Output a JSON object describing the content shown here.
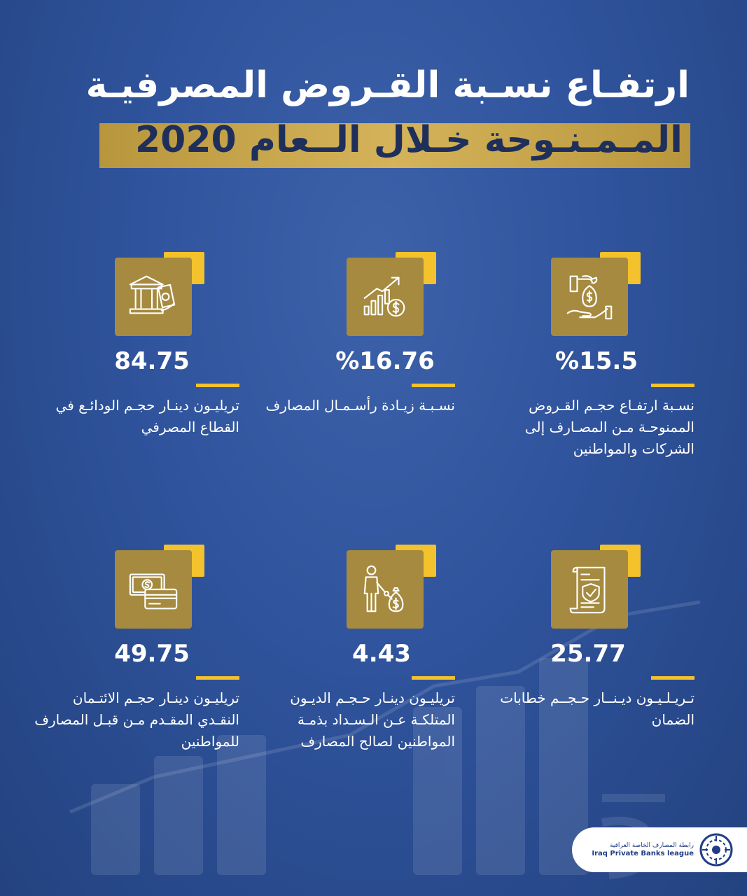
{
  "header": {
    "title_line1": "ارتفـاع نسـبة القـروض المصرفيـة",
    "title_line2": "المـمـنـوحة خـلال الــعام 2020"
  },
  "stats": [
    {
      "value": "%15.5",
      "description": "نسـبة ارتفـاع حجـم القـروض الممنوحـة مـن المصـارف إلى الشركات والمواطنين",
      "icon": "money-bag-hand-icon"
    },
    {
      "value": "%16.76",
      "description": "نسـبـة زيـادة رأسـمـال المصارف",
      "icon": "growth-chart-dollar-icon"
    },
    {
      "value": "84.75",
      "description": "تريليـون دينـار حجـم الودائـع في القطاع المصرفي",
      "icon": "bank-deposit-icon"
    },
    {
      "value": "25.77",
      "description": "تـريـلـيـون ديـنــار حـجــم خطابات الضمان",
      "icon": "guarantee-document-icon"
    },
    {
      "value": "4.43",
      "description": "تريليـون دينـار حـجـم الديـون المتلكـة عـن الـسـداد بذمـة المواطنين لصالح المصارف",
      "icon": "person-debt-icon"
    },
    {
      "value": "49.75",
      "description": "تريليـون دينـار حجـم الائتـمان النقـدي المقـدم مـن قبـل المصارف للمواطنين",
      "icon": "cash-card-icon"
    }
  ],
  "logo": {
    "arabic": "رابطة المصارف الخاصة العراقية",
    "english": "Iraq Private Banks league"
  },
  "colors": {
    "background": "#2f539c",
    "gold": "#a58a3f",
    "accent_yellow": "#f3c22c",
    "title_band": "#c9a74f"
  }
}
